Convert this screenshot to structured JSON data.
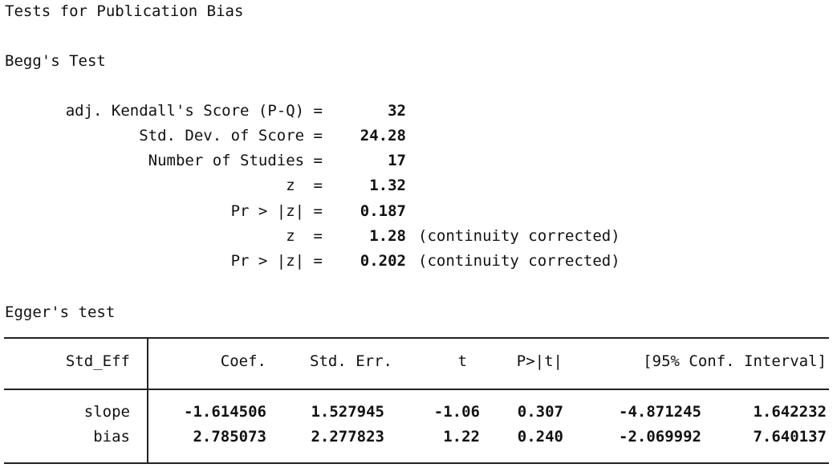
{
  "title": "Tests for Publication Bias",
  "begg": {
    "heading": "Begg's Test",
    "rows": [
      {
        "label": "adj. Kendall's Score (P-Q) =",
        "value": "32",
        "note": ""
      },
      {
        "label": "Std. Dev. of Score =",
        "value": "24.28",
        "note": ""
      },
      {
        "label": "Number of Studies =",
        "value": "17",
        "note": ""
      },
      {
        "label": "z  =",
        "value": "1.32",
        "note": ""
      },
      {
        "label": "Pr > |z| =",
        "value": "0.187",
        "note": ""
      },
      {
        "label": "z  =",
        "value": "1.28",
        "note": "(continuity corrected)"
      },
      {
        "label": "Pr > |z| =",
        "value": "0.202",
        "note": "(continuity corrected)"
      }
    ]
  },
  "egger": {
    "heading": "Egger's test",
    "headers": [
      "Std_Eff",
      "Coef.",
      "Std. Err.",
      "t",
      "P>|t|",
      "[95% Conf. Interval]"
    ],
    "rows": [
      {
        "name": "slope",
        "coef": "-1.614506",
        "se": "1.527945",
        "t": "-1.06",
        "p": "0.307",
        "ci_low": "-4.871245",
        "ci_high": "1.642232"
      },
      {
        "name": "bias",
        "coef": "2.785073",
        "se": "2.277823",
        "t": "1.22",
        "p": "0.240",
        "ci_low": "-2.069992",
        "ci_high": "7.640137"
      }
    ]
  }
}
